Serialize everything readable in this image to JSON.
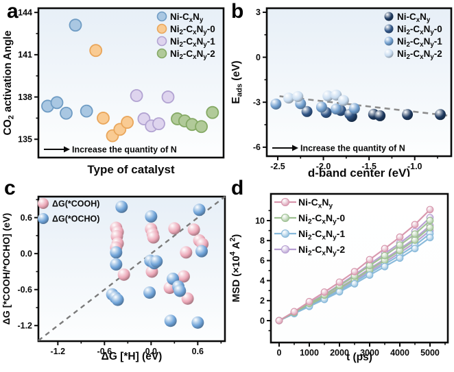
{
  "page": {
    "panel_letters": [
      "a",
      "b",
      "c",
      "d"
    ]
  },
  "chart_data": [
    {
      "panel": "a",
      "type": "scatter",
      "xlabel": "Type of catalyst",
      "ylabel": "CO~2~ activation Angle",
      "xlim": [
        0,
        1
      ],
      "ylim": [
        133.7,
        144.3
      ],
      "xticks": [],
      "yticks": [
        135,
        138,
        141,
        144
      ],
      "xdec": 0,
      "ydec": 0,
      "grid": false,
      "legend_pos": "top-right",
      "annotation": "Increase the quantity of N",
      "series": [
        {
          "name": "Ni-C~x~N~y~",
          "color": "#a9c7e2",
          "stroke": "#6f9cc4",
          "points": [
            [
              0.05,
              137.35
            ],
            [
              0.1,
              137.6
            ],
            [
              0.15,
              136.85
            ],
            [
              0.2,
              143.1
            ],
            [
              0.26,
              137.0
            ]
          ]
        },
        {
          "name": "Ni~2~-C~x~N~y~-0",
          "color": "#f9cb93",
          "stroke": "#e9a65b",
          "points": [
            [
              0.31,
              141.3
            ],
            [
              0.35,
              136.5
            ],
            [
              0.4,
              135.25
            ],
            [
              0.44,
              135.7
            ],
            [
              0.48,
              136.2
            ]
          ]
        },
        {
          "name": "Ni~2~-C~x~N~y~-1",
          "color": "#ded4ee",
          "stroke": "#b2a3d2",
          "points": [
            [
              0.53,
              138.1
            ],
            [
              0.57,
              136.45
            ],
            [
              0.61,
              135.95
            ],
            [
              0.65,
              136.1
            ],
            [
              0.7,
              138.0
            ]
          ]
        },
        {
          "name": "Ni~2~-C~x~N~y~-2",
          "color": "#b1ca99",
          "stroke": "#84a964",
          "points": [
            [
              0.75,
              136.45
            ],
            [
              0.79,
              136.3
            ],
            [
              0.83,
              136.05
            ],
            [
              0.88,
              135.9
            ],
            [
              0.94,
              136.9
            ]
          ]
        }
      ]
    },
    {
      "panel": "b",
      "type": "scatter3d",
      "xlabel": "d-band center (eV)",
      "ylabel": "E~ads~ (eV)",
      "xlim": [
        -2.62,
        -0.6
      ],
      "ylim": [
        -6.6,
        3.27
      ],
      "xticks": [
        -2.5,
        -2.0,
        -1.5,
        -1.0
      ],
      "yticks": [
        3,
        0,
        -3,
        -6
      ],
      "xdec": 1,
      "ydec": 0,
      "grid": false,
      "legend_pos": "top-right",
      "annotation": "Increase the quantity of N",
      "marker_r": 8,
      "trendline": {
        "x1": -2.48,
        "y1": -2.6,
        "x2": -0.62,
        "y2": -3.9,
        "color": "#8c8c8c"
      },
      "series": [
        {
          "name": "Ni-C~x~N~y~",
          "color": "#1e3a60",
          "points": [
            [
              -1.69,
              -3.95
            ],
            [
              -1.45,
              -3.8
            ],
            [
              -1.38,
              -3.9
            ],
            [
              -1.08,
              -3.82
            ],
            [
              -0.72,
              -3.82
            ]
          ]
        },
        {
          "name": "Ni~2~-C~x~N~y~-0",
          "color": "#315687",
          "points": [
            [
              -2.18,
              -3.62
            ],
            [
              -1.97,
              -3.68
            ],
            [
              -1.81,
              -3.55
            ],
            [
              -1.71,
              -3.8
            ]
          ]
        },
        {
          "name": "Ni~2~-C~x~N~y~-1",
          "color": "#6f9dcd",
          "points": [
            [
              -2.52,
              -3.12
            ],
            [
              -2.25,
              -3.1
            ],
            [
              -2.02,
              -3.32
            ],
            [
              -1.86,
              -3.45
            ],
            [
              -1.66,
              -3.42
            ]
          ]
        },
        {
          "name": "Ni~2~-C~x~N~y~-2",
          "color": "#c8dcf0",
          "points": [
            [
              -2.38,
              -2.72
            ],
            [
              -2.28,
              -2.62
            ],
            [
              -1.95,
              -2.58
            ],
            [
              -1.86,
              -2.52
            ],
            [
              -1.78,
              -2.88
            ]
          ]
        }
      ]
    },
    {
      "panel": "c",
      "type": "scatter3d",
      "xlabel": "ΔG [*H] (eV)",
      "ylabel": "ΔG [*COOH/*OCHO] (eV)",
      "xlim": [
        -1.45,
        0.95
      ],
      "ylim": [
        -1.46,
        0.95
      ],
      "xticks": [
        -1.2,
        -0.6,
        0.0,
        0.6
      ],
      "yticks": [
        0.6,
        0.0,
        -0.6,
        -1.2
      ],
      "xdec": 1,
      "ydec": 1,
      "grid": false,
      "legend_pos": "top-left",
      "marker_r": 9,
      "diagonal": {
        "color": "#7a7a7a"
      },
      "series": [
        {
          "name": "ΔG(*COOH)",
          "color": "#eca8b8",
          "points": [
            [
              -0.45,
              0.43
            ],
            [
              -0.43,
              0.36
            ],
            [
              -0.44,
              0.29
            ],
            [
              -0.43,
              0.17
            ],
            [
              -0.45,
              0.1
            ],
            [
              -0.35,
              -0.35
            ],
            [
              0.0,
              0.41
            ],
            [
              0.02,
              0.33
            ],
            [
              0.03,
              0.27
            ],
            [
              0.01,
              -0.3
            ],
            [
              0.3,
              0.42
            ],
            [
              0.55,
              0.4
            ],
            [
              0.62,
              0.22
            ],
            [
              0.66,
              0.16
            ],
            [
              0.45,
              0.02
            ],
            [
              0.42,
              -0.38
            ],
            [
              0.24,
              -0.57
            ],
            [
              0.47,
              -0.75
            ]
          ]
        },
        {
          "name": "ΔG(*OCHO)",
          "color": "#6fa3d8",
          "points": [
            [
              -0.38,
              0.78
            ],
            [
              -0.45,
              0.02
            ],
            [
              -0.45,
              -0.18
            ],
            [
              -0.5,
              -0.68
            ],
            [
              -0.46,
              -0.73
            ],
            [
              -0.43,
              -0.77
            ],
            [
              0.0,
              0.62
            ],
            [
              -0.01,
              -0.12
            ],
            [
              0.04,
              -0.16
            ],
            [
              0.07,
              -0.13
            ],
            [
              -0.02,
              -0.65
            ],
            [
              0.28,
              -0.42
            ],
            [
              0.35,
              -0.55
            ],
            [
              0.37,
              -0.62
            ],
            [
              0.25,
              -1.12
            ],
            [
              0.62,
              0.73
            ],
            [
              0.65,
              0.04
            ],
            [
              0.6,
              -1.15
            ]
          ]
        }
      ]
    },
    {
      "panel": "d",
      "type": "line",
      "xlabel": "t (ps)",
      "ylabel": "MSD (×10^4^ A^2^)",
      "xlim": [
        -273,
        5591
      ],
      "ylim": [
        -2.19,
        12.67
      ],
      "xticks": [
        0,
        1000,
        2000,
        3000,
        4000,
        5000
      ],
      "yticks": [
        0,
        2,
        4,
        6,
        8,
        10
      ],
      "xdec": 0,
      "ydec": 0,
      "grid": false,
      "legend_pos": "top-left",
      "x": [
        0,
        500,
        1000,
        1500,
        2000,
        2500,
        3000,
        3500,
        4000,
        4500,
        5000
      ],
      "series": [
        {
          "name": "Ni-C~x~N~y~",
          "color": "#d694ab",
          "in_legend": true,
          "values": [
            0,
            0.9,
            1.9,
            2.85,
            3.85,
            4.9,
            6.1,
            7.2,
            8.35,
            9.6,
            11.1
          ]
        },
        {
          "name": "Ni~2~-C~x~N~y~-0",
          "color": "#9cbf90",
          "in_legend": true,
          "values": [
            0,
            0.82,
            1.72,
            2.55,
            3.5,
            4.45,
            5.5,
            6.5,
            7.55,
            8.65,
            10.0
          ]
        },
        {
          "name": "Ni~2~-C~x~N~y~-1",
          "color": "#85b7d9",
          "in_legend": true,
          "values": [
            0,
            0.7,
            1.42,
            2.12,
            2.88,
            3.68,
            4.55,
            5.4,
            6.25,
            7.2,
            8.3
          ]
        },
        {
          "name": "Ni~2~-C~x~N~y~-2",
          "color": "#b59dd1",
          "in_legend": true,
          "values": [
            0,
            0.85,
            1.76,
            2.62,
            3.58,
            4.58,
            5.65,
            6.7,
            7.75,
            8.9,
            10.3
          ]
        },
        {
          "name": "run-green-2",
          "color": "#9cbf90",
          "in_legend": false,
          "values": [
            0,
            0.77,
            1.58,
            2.37,
            3.23,
            4.12,
            5.08,
            6.03,
            7.0,
            8.05,
            9.3
          ]
        },
        {
          "name": "run-blue-2",
          "color": "#85b7d9",
          "in_legend": false,
          "values": [
            0,
            0.72,
            1.48,
            2.22,
            3.02,
            3.85,
            4.76,
            5.64,
            6.54,
            7.52,
            8.7
          ]
        },
        {
          "name": "run-purple-2",
          "color": "#b59dd1",
          "in_legend": false,
          "values": [
            0,
            0.79,
            1.61,
            2.42,
            3.3,
            4.21,
            5.19,
            6.16,
            7.16,
            8.22,
            9.5
          ]
        },
        {
          "name": "run-purple-3",
          "color": "#b59dd1",
          "in_legend": false,
          "values": [
            0,
            0.74,
            1.52,
            2.29,
            3.12,
            3.99,
            4.92,
            5.83,
            6.78,
            7.79,
            9.0
          ]
        }
      ]
    }
  ]
}
